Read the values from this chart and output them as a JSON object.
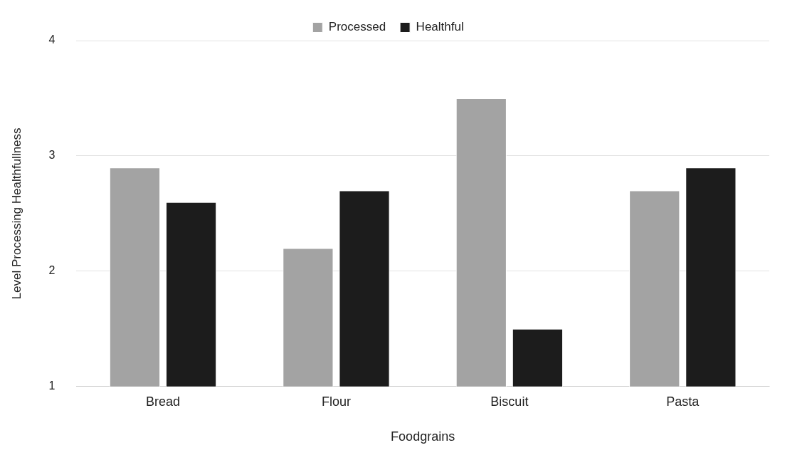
{
  "chart_data": {
    "type": "bar",
    "xlabel": "Foodgrains",
    "ylabel": "Level Processing Healthfullness",
    "categories": [
      "Bread",
      "Flour",
      "Biscuit",
      "Pasta"
    ],
    "series": [
      {
        "name": "Processed",
        "color": "#a3a3a3",
        "values": [
          2.9,
          2.2,
          3.5,
          2.7
        ]
      },
      {
        "name": "Healthful",
        "color": "#1c1c1c",
        "values": [
          2.6,
          2.7,
          1.5,
          2.9
        ]
      }
    ],
    "ylim": [
      1,
      4
    ],
    "yticks": [
      1,
      2,
      3,
      4
    ],
    "grid": "y",
    "legend": "top"
  }
}
